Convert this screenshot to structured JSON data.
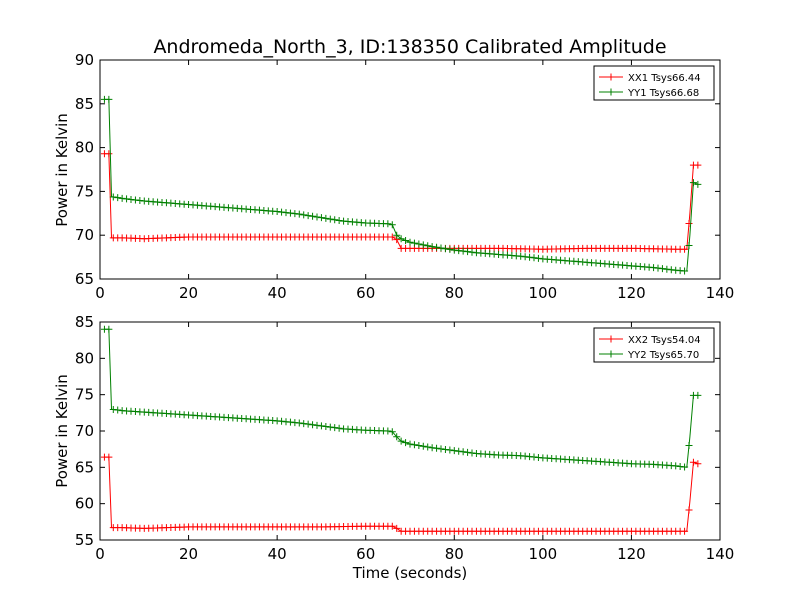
{
  "chart_data": {
    "title": "Andromeda_North_3, ID:138350 Calibrated Amplitude",
    "xlabel": "Time (seconds)",
    "colors": {
      "xx": "#ff0000",
      "yy": "#008000"
    },
    "panels": [
      {
        "type": "line",
        "ylabel": "Power in Kelvin",
        "xlim": [
          0,
          140
        ],
        "ylim": [
          65,
          90
        ],
        "xticks": [
          0,
          20,
          40,
          60,
          80,
          100,
          120,
          140
        ],
        "yticks": [
          65,
          70,
          75,
          80,
          85,
          90
        ],
        "legend_position": "top-right",
        "series": [
          {
            "name": "XX1 Tsys66.44",
            "color": "#ff0000",
            "x": [
              1,
              2,
              2.6,
              5,
              10,
              15,
              20,
              30,
              40,
              50,
              60,
              66,
              67,
              68,
              70,
              80,
              90,
              100,
              110,
              120,
              130,
              132.5,
              133.2,
              134,
              135
            ],
            "y": [
              79.3,
              79.3,
              69.7,
              69.7,
              69.6,
              69.7,
              69.8,
              69.8,
              69.8,
              69.8,
              69.8,
              69.8,
              69.5,
              68.5,
              68.5,
              68.5,
              68.5,
              68.4,
              68.5,
              68.5,
              68.4,
              68.4,
              72.5,
              78.0,
              78.0
            ]
          },
          {
            "name": "YY1 Tsys66.68",
            "color": "#008000",
            "x": [
              1,
              2,
              2.6,
              5,
              10,
              15,
              20,
              25,
              30,
              35,
              40,
              45,
              50,
              55,
              60,
              65,
              66,
              67,
              68,
              70,
              75,
              80,
              85,
              90,
              95,
              100,
              105,
              110,
              115,
              120,
              125,
              130,
              132.5,
              133.2,
              134,
              135
            ],
            "y": [
              85.5,
              85.5,
              74.4,
              74.2,
              73.9,
              73.7,
              73.5,
              73.3,
              73.1,
              72.9,
              72.7,
              72.4,
              72.0,
              71.6,
              71.4,
              71.3,
              71.2,
              70.0,
              69.6,
              69.2,
              68.7,
              68.3,
              68.0,
              67.8,
              67.6,
              67.3,
              67.1,
              66.9,
              66.7,
              66.5,
              66.3,
              66.0,
              65.9,
              70.0,
              76.0,
              75.8
            ]
          }
        ]
      },
      {
        "type": "line",
        "ylabel": "Power in Kelvin",
        "xlim": [
          0,
          140
        ],
        "ylim": [
          55,
          85
        ],
        "xticks": [
          0,
          20,
          40,
          60,
          80,
          100,
          120,
          140
        ],
        "yticks": [
          55,
          60,
          65,
          70,
          75,
          80,
          85
        ],
        "legend_position": "top-right",
        "series": [
          {
            "name": "XX2 Tsys54.04",
            "color": "#ff0000",
            "x": [
              1,
              2,
              2.6,
              5,
              10,
              15,
              20,
              30,
              40,
              50,
              60,
              66,
              67,
              68,
              70,
              80,
              90,
              100,
              110,
              120,
              130,
              132.5,
              133.2,
              134,
              135
            ],
            "y": [
              66.4,
              66.4,
              56.7,
              56.7,
              56.6,
              56.7,
              56.8,
              56.8,
              56.8,
              56.8,
              56.9,
              56.9,
              56.6,
              56.2,
              56.2,
              56.2,
              56.2,
              56.2,
              56.2,
              56.2,
              56.2,
              56.2,
              60.3,
              65.7,
              65.5
            ]
          },
          {
            "name": "YY2 Tsys65.70",
            "color": "#008000",
            "x": [
              1,
              2,
              2.6,
              5,
              10,
              15,
              20,
              25,
              30,
              35,
              40,
              45,
              50,
              55,
              60,
              65,
              66,
              67,
              68,
              70,
              75,
              80,
              85,
              90,
              95,
              100,
              105,
              110,
              115,
              120,
              125,
              130,
              132.5,
              133.2,
              134,
              135
            ],
            "y": [
              84.0,
              84.0,
              73.0,
              72.8,
              72.6,
              72.4,
              72.2,
              72.0,
              71.8,
              71.6,
              71.4,
              71.1,
              70.7,
              70.3,
              70.1,
              70.0,
              69.9,
              69.2,
              68.6,
              68.2,
              67.7,
              67.3,
              66.9,
              66.7,
              66.6,
              66.3,
              66.1,
              65.9,
              65.7,
              65.5,
              65.4,
              65.2,
              65.0,
              69.2,
              74.9,
              74.9
            ]
          }
        ]
      }
    ]
  }
}
